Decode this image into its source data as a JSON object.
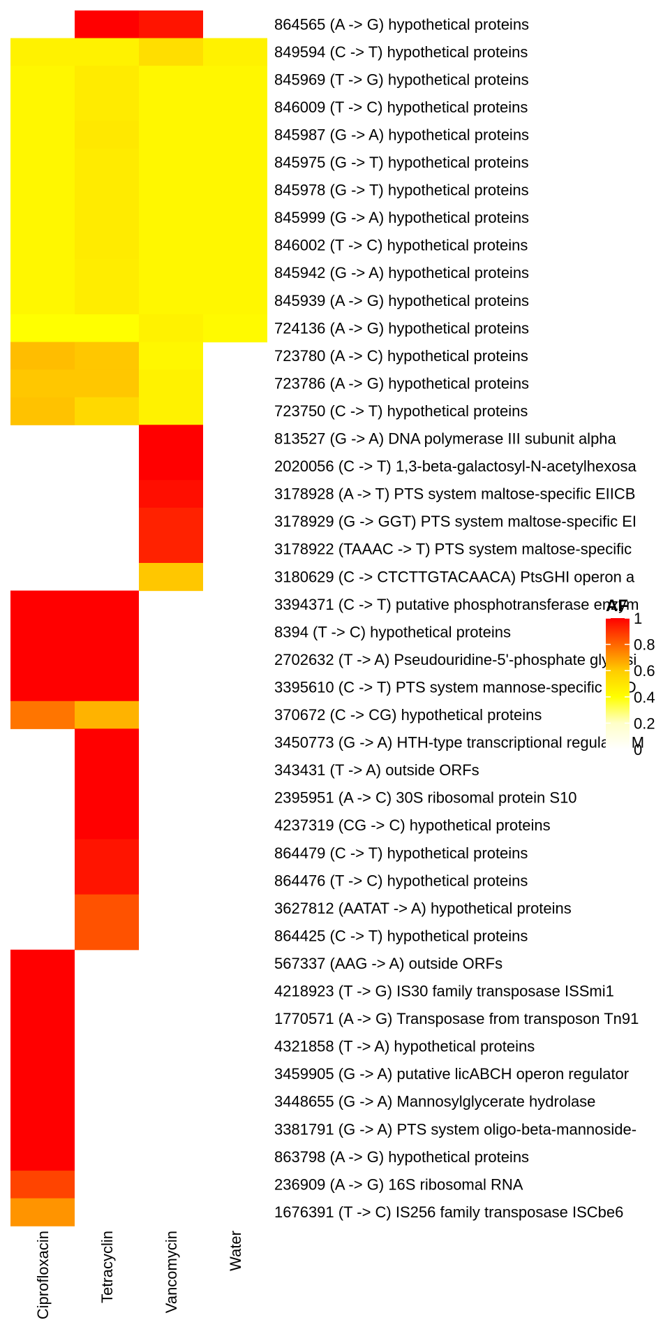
{
  "chart_data": {
    "type": "heatmap",
    "title": "",
    "xlabel": "",
    "ylabel": "",
    "columns": [
      "Ciprofloxacin",
      "Tetracyclin",
      "Vancomycin",
      "Water"
    ],
    "rows": [
      "864565 (A -> G) hypothetical proteins",
      "849594 (C -> T) hypothetical proteins",
      "845969 (T -> G) hypothetical proteins",
      "846009 (T -> C) hypothetical proteins",
      "845987 (G -> A) hypothetical proteins",
      "845975 (G -> T) hypothetical proteins",
      "845978 (G -> T) hypothetical proteins",
      "845999 (G -> A) hypothetical proteins",
      "846002 (T -> C) hypothetical proteins",
      "845942 (G -> A) hypothetical proteins",
      "845939 (A -> G) hypothetical proteins",
      "724136 (A -> G) hypothetical proteins",
      "723780 (A -> C) hypothetical proteins",
      "723786 (A -> G) hypothetical proteins",
      "723750 (C -> T) hypothetical proteins",
      "813527 (G -> A) DNA polymerase III subunit alpha",
      "2020056 (C -> T) 1,3-beta-galactosyl-N-acetylhexosa",
      "3178928 (A -> T) PTS system maltose-specific EIICB",
      "3178929 (G -> GGT) PTS system maltose-specific EI",
      "3178922 (TAAAC -> T) PTS system maltose-specific",
      "3180629 (C -> CTCTTGTACAACA) PtsGHI operon a",
      "3394371 (C -> T) putative phosphotransferase enzym",
      "8394 (T -> C) hypothetical proteins",
      "2702632 (T -> A) Pseudouridine-5'-phosphate glycosi",
      "3395610 (C -> T) PTS system mannose-specific EIID",
      "370672 (C -> CG) hypothetical proteins",
      "3450773 (G -> A) HTH-type transcriptional regulator M",
      "343431 (T -> A) outside ORFs",
      "2395951 (A -> C) 30S ribosomal protein S10",
      "4237319 (CG -> C) hypothetical proteins",
      "864479 (C -> T) hypothetical proteins",
      "864476 (T -> C) hypothetical proteins",
      "3627812 (AATAT -> A) hypothetical proteins",
      "864425 (C -> T) hypothetical proteins",
      "567337 (AAG -> A) outside ORFs",
      "4218923 (T -> G) IS30 family transposase ISSmi1",
      "1770571 (A -> G) Transposase from transposon Tn91",
      "4321858 (T -> A) hypothetical proteins",
      "3459905 (G -> A) putative licABCH operon regulator",
      "3448655 (G -> A) Mannosylglycerate hydrolase",
      "3381791 (G -> A) PTS system oligo-beta-mannoside-",
      "863798 (A -> G) hypothetical proteins",
      "236909 (A -> G) 16S ribosomal RNA",
      "1676391 (T -> C) IS256 family transposase ISCbe6"
    ],
    "values": [
      [
        null,
        1.0,
        0.97,
        null
      ],
      [
        0.5,
        0.5,
        0.58,
        0.5
      ],
      [
        0.48,
        0.53,
        0.48,
        0.48
      ],
      [
        0.48,
        0.53,
        0.48,
        0.48
      ],
      [
        0.48,
        0.54,
        0.48,
        0.48
      ],
      [
        0.48,
        0.53,
        0.48,
        0.48
      ],
      [
        0.48,
        0.53,
        0.48,
        0.48
      ],
      [
        0.48,
        0.53,
        0.48,
        0.48
      ],
      [
        0.48,
        0.53,
        0.48,
        0.48
      ],
      [
        0.48,
        0.52,
        0.48,
        0.48
      ],
      [
        0.48,
        0.52,
        0.48,
        0.48
      ],
      [
        0.45,
        0.45,
        0.5,
        0.47
      ],
      [
        0.68,
        0.66,
        0.48,
        null
      ],
      [
        0.66,
        0.66,
        0.5,
        null
      ],
      [
        0.67,
        0.6,
        0.5,
        null
      ],
      [
        null,
        null,
        1.0,
        null
      ],
      [
        null,
        null,
        1.0,
        null
      ],
      [
        null,
        null,
        0.98,
        null
      ],
      [
        null,
        null,
        0.95,
        null
      ],
      [
        null,
        null,
        0.95,
        null
      ],
      [
        null,
        null,
        0.66,
        null
      ],
      [
        1.0,
        1.0,
        null,
        null
      ],
      [
        1.0,
        1.0,
        null,
        null
      ],
      [
        1.0,
        1.0,
        null,
        null
      ],
      [
        1.0,
        1.0,
        null,
        null
      ],
      [
        0.82,
        0.7,
        null,
        null
      ],
      [
        null,
        1.0,
        null,
        null
      ],
      [
        null,
        1.0,
        null,
        null
      ],
      [
        null,
        1.0,
        null,
        null
      ],
      [
        null,
        1.0,
        null,
        null
      ],
      [
        null,
        0.97,
        null,
        null
      ],
      [
        null,
        0.97,
        null,
        null
      ],
      [
        null,
        0.88,
        null,
        null
      ],
      [
        null,
        0.88,
        null,
        null
      ],
      [
        1.0,
        null,
        null,
        null
      ],
      [
        1.0,
        null,
        null,
        null
      ],
      [
        1.0,
        null,
        null,
        null
      ],
      [
        1.0,
        null,
        null,
        null
      ],
      [
        1.0,
        null,
        null,
        null
      ],
      [
        1.0,
        null,
        null,
        null
      ],
      [
        1.0,
        null,
        null,
        null
      ],
      [
        1.0,
        null,
        null,
        null
      ],
      [
        0.9,
        null,
        null,
        null
      ],
      [
        0.76,
        null,
        null,
        null
      ]
    ],
    "legend": {
      "title": "AF",
      "ticks": [
        0,
        0.2,
        0.4,
        0.6,
        0.8,
        1
      ],
      "tick_labels": [
        "0",
        "0.2",
        "0.4",
        "0.6",
        "0.8",
        "1"
      ],
      "range": [
        0,
        1
      ],
      "placement": "right",
      "colors": [
        "#ffffff",
        "#ffffc8",
        "#ffff00",
        "#ffcc00",
        "#ff6600",
        "#ff0000"
      ]
    },
    "missing_color": "#ffffff"
  }
}
